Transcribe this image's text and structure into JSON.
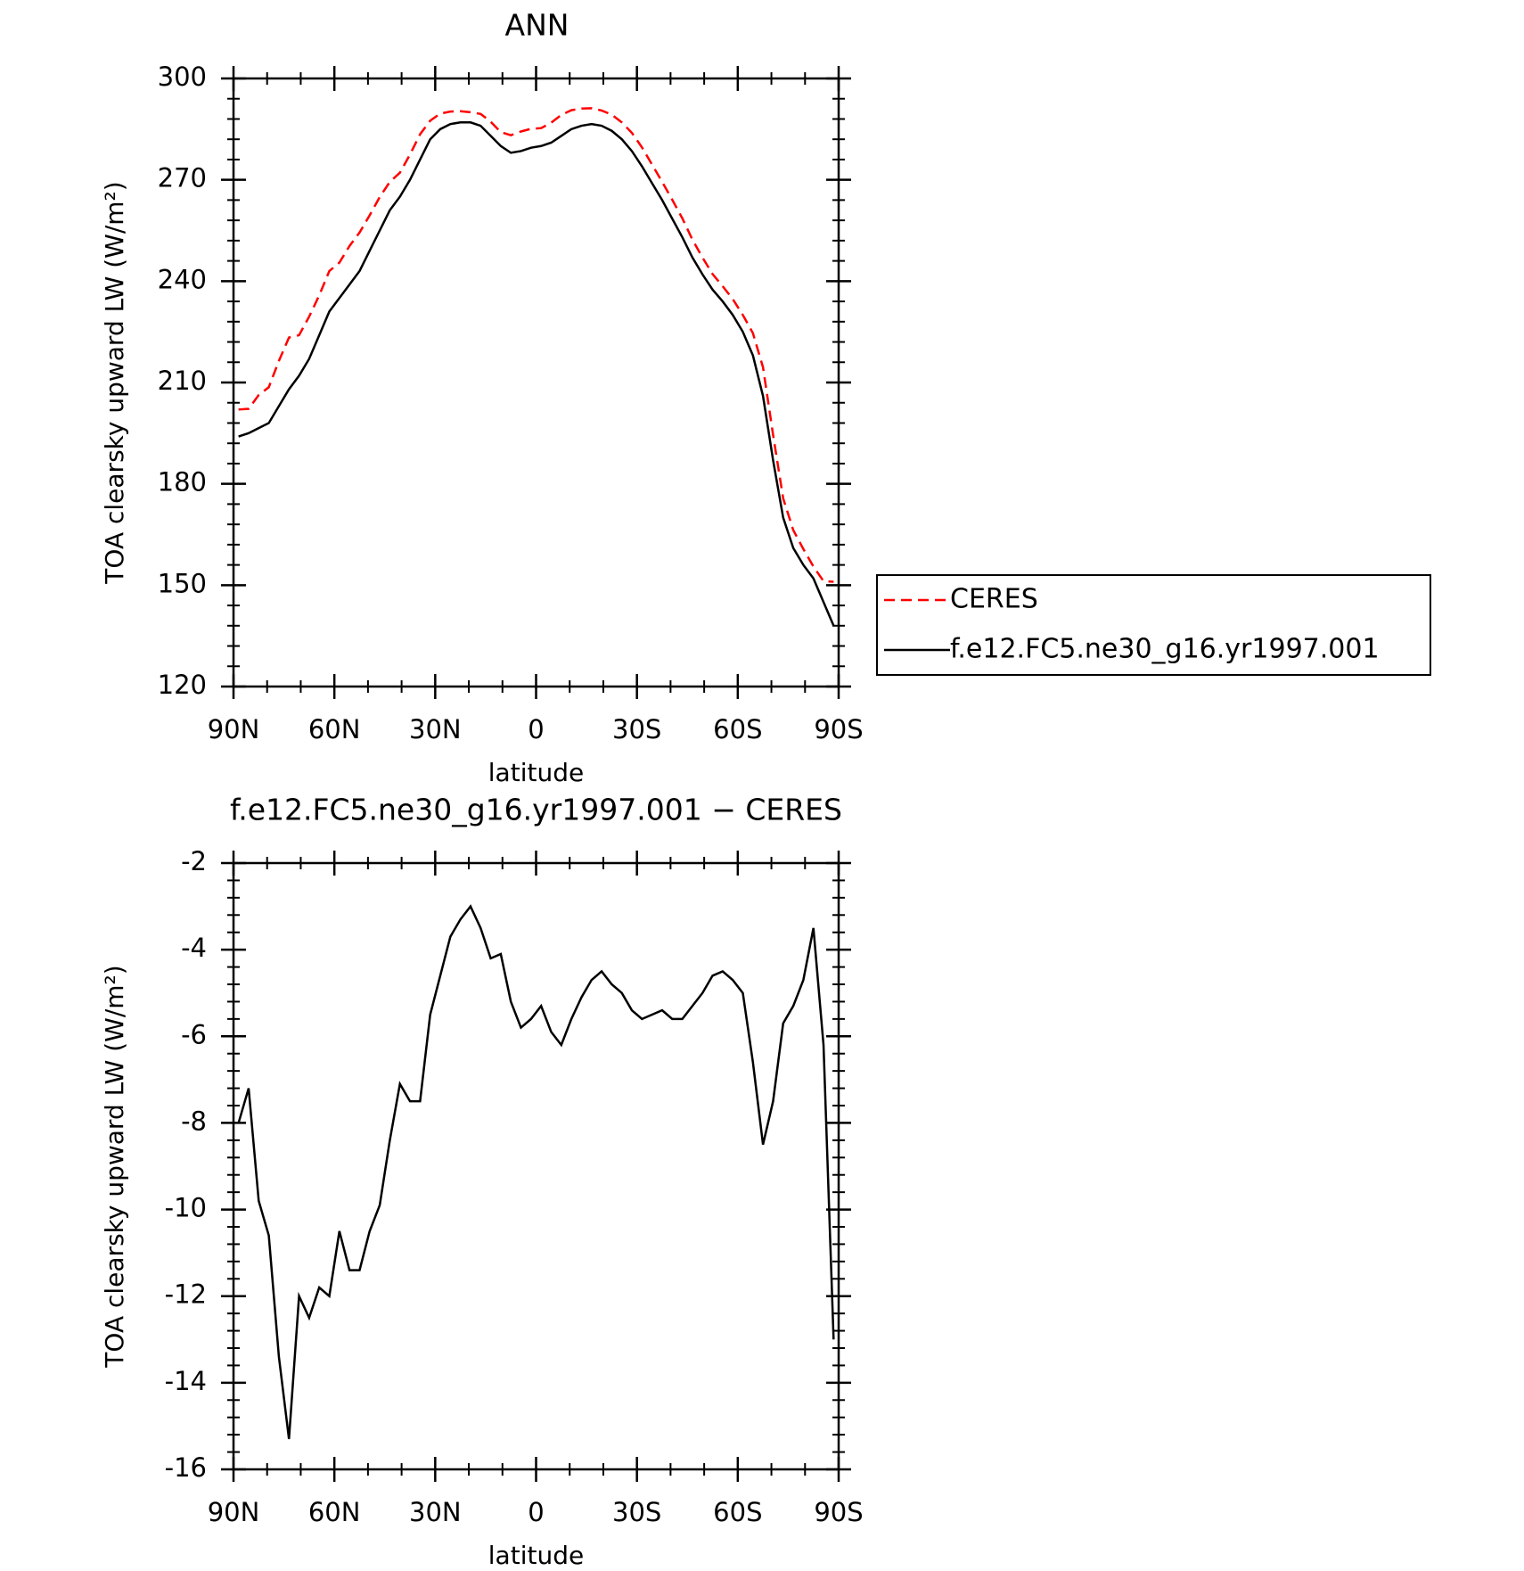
{
  "chart_data": [
    {
      "type": "line",
      "title": "ANN",
      "xlabel": "latitude",
      "ylabel": "TOA clearsky upward LW (W/m²)",
      "x": [
        88.5,
        85.5,
        82.5,
        79.5,
        76.5,
        73.5,
        70.5,
        67.5,
        64.5,
        61.5,
        58.5,
        55.5,
        52.5,
        49.5,
        46.5,
        43.5,
        40.5,
        37.5,
        34.5,
        31.5,
        28.5,
        25.5,
        22.5,
        19.5,
        16.5,
        13.5,
        10.5,
        7.5,
        4.5,
        1.5,
        -1.5,
        -4.5,
        -7.5,
        -10.5,
        -13.5,
        -16.5,
        -19.5,
        -22.5,
        -25.5,
        -28.5,
        -31.5,
        -34.5,
        -37.5,
        -40.5,
        -43.5,
        -46.5,
        -49.5,
        -52.5,
        -55.5,
        -58.5,
        -61.5,
        -64.5,
        -67.5,
        -70.5,
        -73.5,
        -76.5,
        -79.5,
        -82.5,
        -85.5,
        -88.5
      ],
      "xlim": [
        90,
        -90
      ],
      "xticks": [
        {
          "value": 90,
          "label": "90N"
        },
        {
          "value": 60,
          "label": "60N"
        },
        {
          "value": 30,
          "label": "30N"
        },
        0,
        {
          "value": -30,
          "label": "30S"
        },
        {
          "value": -60,
          "label": "60S"
        },
        {
          "value": -90,
          "label": "90S"
        }
      ],
      "ylim": [
        120,
        300
      ],
      "yticks": [
        120,
        150,
        180,
        210,
        240,
        270,
        300
      ],
      "legend": "right",
      "series": [
        {
          "name": "CERES",
          "color": "#ff0000",
          "style": "dashed",
          "values": [
            202,
            202.2,
            206.3,
            208.6,
            216.4,
            223.3,
            224,
            229.5,
            235.8,
            243,
            245.5,
            250.4,
            254.4,
            259.5,
            264.9,
            269.4,
            272.1,
            277.5,
            283.5,
            287.5,
            289.6,
            290.2,
            290.3,
            290,
            289.5,
            287.2,
            284.1,
            283.2,
            284.3,
            285.1,
            285.3,
            286.9,
            289.2,
            290.6,
            291.1,
            291.2,
            290.5,
            289.3,
            287,
            283.9,
            279.6,
            274.5,
            269.4,
            264.1,
            258.6,
            252.3,
            247,
            242.1,
            238.5,
            234.7,
            230,
            224.6,
            214.5,
            194.5,
            175.7,
            166.3,
            160.7,
            155.5,
            151.2,
            151
          ]
        },
        {
          "name": "f.e12.FC5.ne30_g16.yr1997.001",
          "color": "#000000",
          "style": "solid",
          "values": [
            194,
            195,
            196.5,
            198,
            203,
            208,
            212,
            217,
            224,
            231,
            235,
            239,
            243,
            249,
            255,
            261,
            265,
            270,
            276,
            282,
            285,
            286.5,
            287,
            287,
            286,
            283,
            280,
            278,
            278.5,
            279.5,
            280,
            281,
            283,
            285,
            286,
            286.5,
            286,
            284.5,
            282,
            278.5,
            274,
            269,
            264,
            258.5,
            253,
            247,
            242,
            237.5,
            234,
            230,
            225,
            218,
            206,
            187,
            170,
            161,
            156,
            152,
            145,
            138
          ]
        }
      ]
    },
    {
      "type": "line",
      "title": "f.e12.FC5.ne30_g16.yr1997.001 − CERES",
      "xlabel": "latitude",
      "ylabel": "TOA clearsky upward LW (W/m²)",
      "x": [
        88.5,
        85.5,
        82.5,
        79.5,
        76.5,
        73.5,
        70.5,
        67.5,
        64.5,
        61.5,
        58.5,
        55.5,
        52.5,
        49.5,
        46.5,
        43.5,
        40.5,
        37.5,
        34.5,
        31.5,
        28.5,
        25.5,
        22.5,
        19.5,
        16.5,
        13.5,
        10.5,
        7.5,
        4.5,
        1.5,
        -1.5,
        -4.5,
        -7.5,
        -10.5,
        -13.5,
        -16.5,
        -19.5,
        -22.5,
        -25.5,
        -28.5,
        -31.5,
        -34.5,
        -37.5,
        -40.5,
        -43.5,
        -46.5,
        -49.5,
        -52.5,
        -55.5,
        -58.5,
        -61.5,
        -64.5,
        -67.5,
        -70.5,
        -73.5,
        -76.5,
        -79.5,
        -82.5,
        -85.5,
        -88.5
      ],
      "xlim": [
        90,
        -90
      ],
      "xticks": [
        {
          "value": 90,
          "label": "90N"
        },
        {
          "value": 60,
          "label": "60N"
        },
        {
          "value": 30,
          "label": "30N"
        },
        0,
        {
          "value": -30,
          "label": "30S"
        },
        {
          "value": -60,
          "label": "60S"
        },
        {
          "value": -90,
          "label": "90S"
        }
      ],
      "ylim": [
        -16,
        -2
      ],
      "yticks": [
        -16,
        -14,
        -12,
        -10,
        -8,
        -6,
        -4,
        -2
      ],
      "color": "#000000",
      "values": [
        -8.0,
        -7.2,
        -9.8,
        -10.6,
        -13.4,
        -15.3,
        -12.0,
        -12.5,
        -11.8,
        -12.0,
        -10.5,
        -11.4,
        -11.4,
        -10.5,
        -9.9,
        -8.4,
        -7.1,
        -7.5,
        -7.5,
        -5.5,
        -4.6,
        -3.7,
        -3.3,
        -3.0,
        -3.5,
        -4.2,
        -4.1,
        -5.2,
        -5.8,
        -5.6,
        -5.3,
        -5.9,
        -6.2,
        -5.6,
        -5.1,
        -4.7,
        -4.5,
        -4.8,
        -5.0,
        -5.4,
        -5.6,
        -5.5,
        -5.4,
        -5.6,
        -5.6,
        -5.3,
        -5.0,
        -4.6,
        -4.5,
        -4.7,
        -5.0,
        -6.6,
        -8.5,
        -7.5,
        -5.7,
        -5.3,
        -4.7,
        -3.5,
        -6.2,
        -13.0
      ]
    }
  ]
}
